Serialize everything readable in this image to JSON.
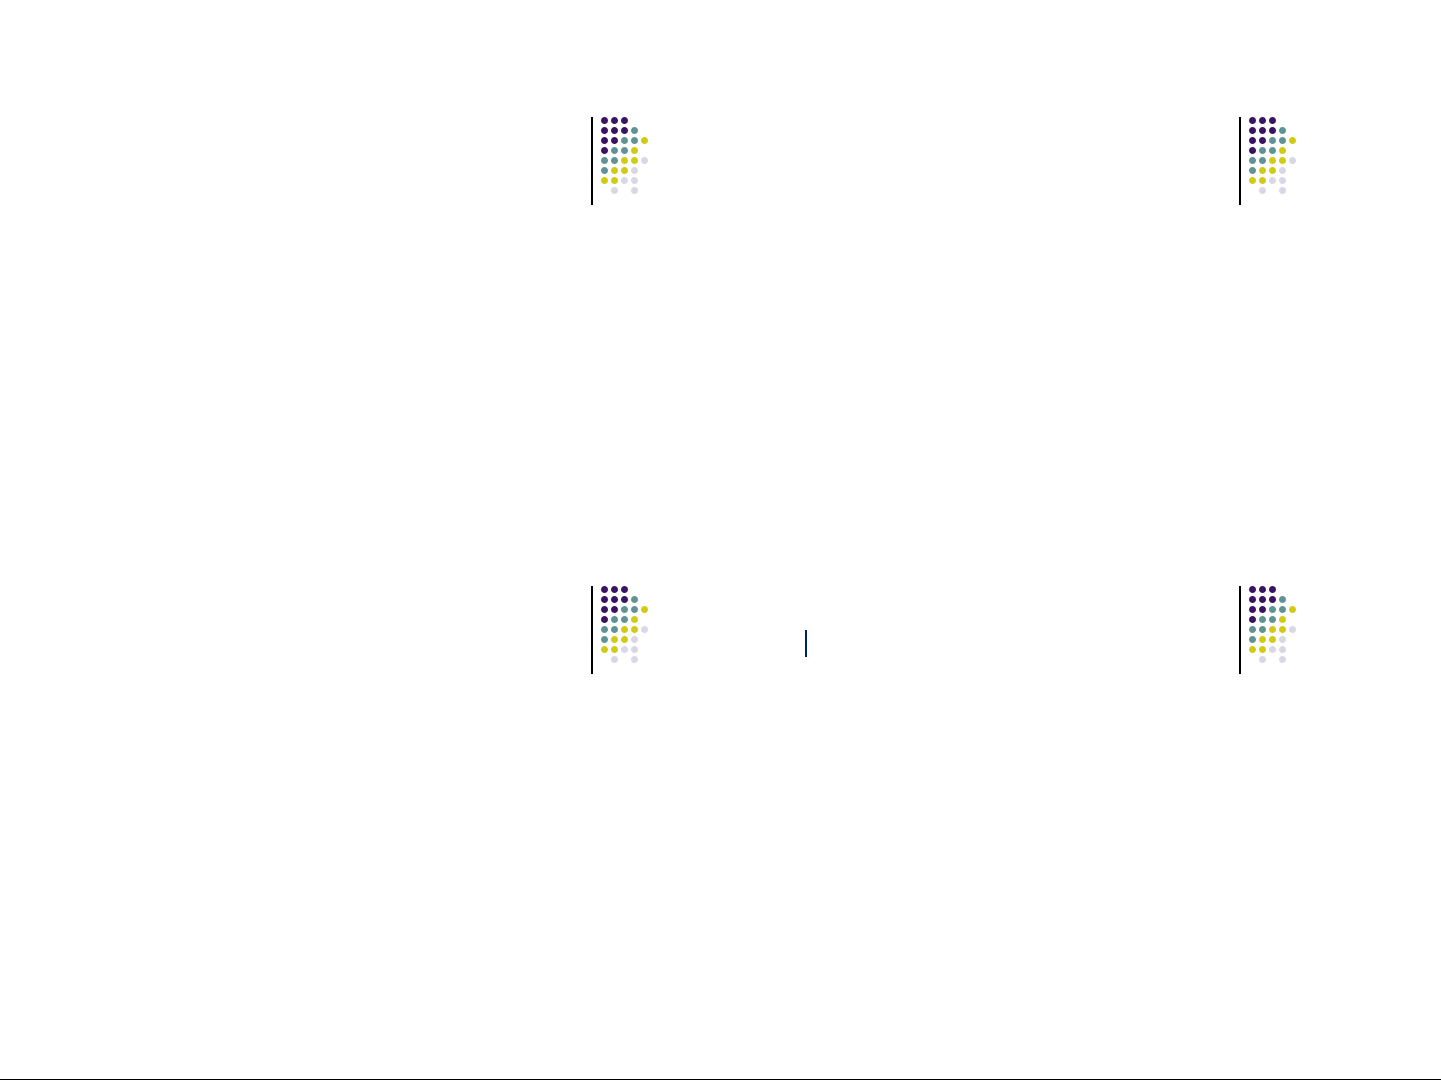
{
  "palette": {
    "header_navy": "#00215e",
    "row_band_dark": "#ebebcb",
    "row_band_light": "#f4f5e5",
    "dot_purple": "#3b1363",
    "dot_teal": "#5f9395",
    "dot_yellow": "#d1cb14",
    "dot_lilac": "#d9d6e5"
  },
  "slides": [
    {
      "name": "top-left-slide",
      "decoration_icon": "dot-grid-icon",
      "table": {
        "header_cells": [
          "",
          "",
          "",
          ""
        ],
        "rows": [
          [
            "",
            "",
            "",
            ""
          ],
          [
            "",
            "",
            "",
            ""
          ],
          [
            "",
            "",
            "",
            ""
          ]
        ]
      }
    },
    {
      "name": "top-right-slide",
      "decoration_icon": "dot-grid-icon"
    },
    {
      "name": "bottom-left-slide",
      "decoration_icon": "dot-grid-icon"
    },
    {
      "name": "bottom-right-slide",
      "decoration_icon": "dot-grid-icon",
      "table": {
        "header_cells": [
          "",
          "",
          ""
        ],
        "rows": [
          [
            "",
            "",
            "",
            ""
          ],
          [
            "",
            "",
            "",
            ""
          ],
          [
            "",
            "",
            "",
            ""
          ],
          [
            "",
            "",
            "",
            ""
          ]
        ]
      }
    }
  ]
}
